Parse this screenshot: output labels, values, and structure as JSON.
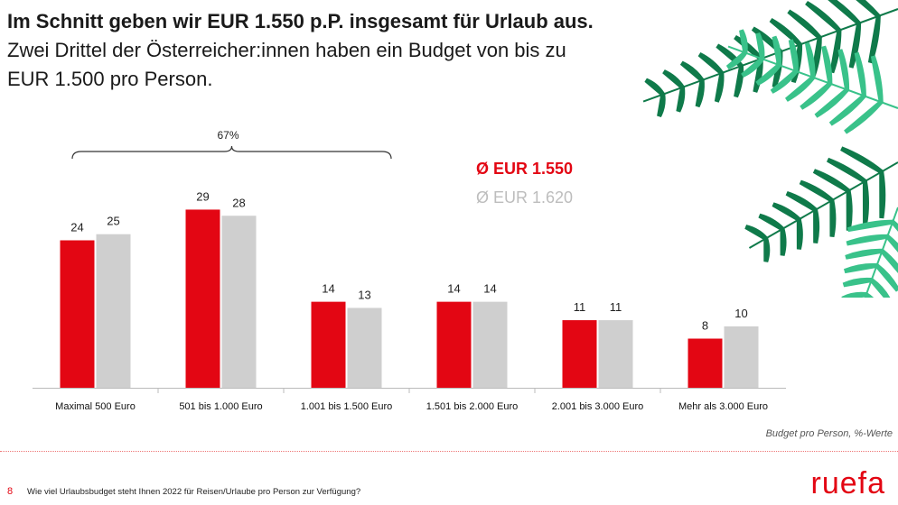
{
  "headline": {
    "bold": "Im Schnitt geben wir EUR 1.550 p.P. insgesamt für Urlaub aus.",
    "rest": " Zwei Drittel der Österreicher:innen haben ein Budget von bis zu EUR 1.500 pro Person."
  },
  "chart_data": {
    "type": "bar",
    "categories": [
      "Maximal 500 Euro",
      "501 bis 1.000 Euro",
      "1.001 bis 1.500 Euro",
      "1.501 bis 2.000 Euro",
      "2.001 bis 3.000 Euro",
      "Mehr als 3.000 Euro"
    ],
    "series": [
      {
        "values": [
          24,
          29,
          14,
          14,
          11,
          8
        ],
        "color": "#e30613"
      },
      {
        "values": [
          25,
          28,
          13,
          14,
          11,
          10
        ],
        "color": "#cfcfcf"
      }
    ],
    "ylim": [
      0,
      32
    ],
    "grid": false,
    "bracket": {
      "label": "67%",
      "from_category": 0,
      "to_category": 2
    },
    "legend": {
      "placement": "top-center",
      "entries": [
        {
          "label": "Ø EUR 1.550",
          "color": "#e30613"
        },
        {
          "label": "Ø EUR 1.620",
          "color": "#bdbdbd"
        }
      ]
    },
    "note": "Budget pro Person, %-Werte"
  },
  "footer": {
    "page_number": "8",
    "question": "Wie viel Urlaubsbudget steht Ihnen 2022  für Reisen/Urlaube pro Person zur Verfügung?",
    "logo": "ruefa"
  },
  "colors": {
    "accent": "#e30613",
    "palm_dark": "#0f7a4a",
    "palm_light": "#39c28a"
  }
}
